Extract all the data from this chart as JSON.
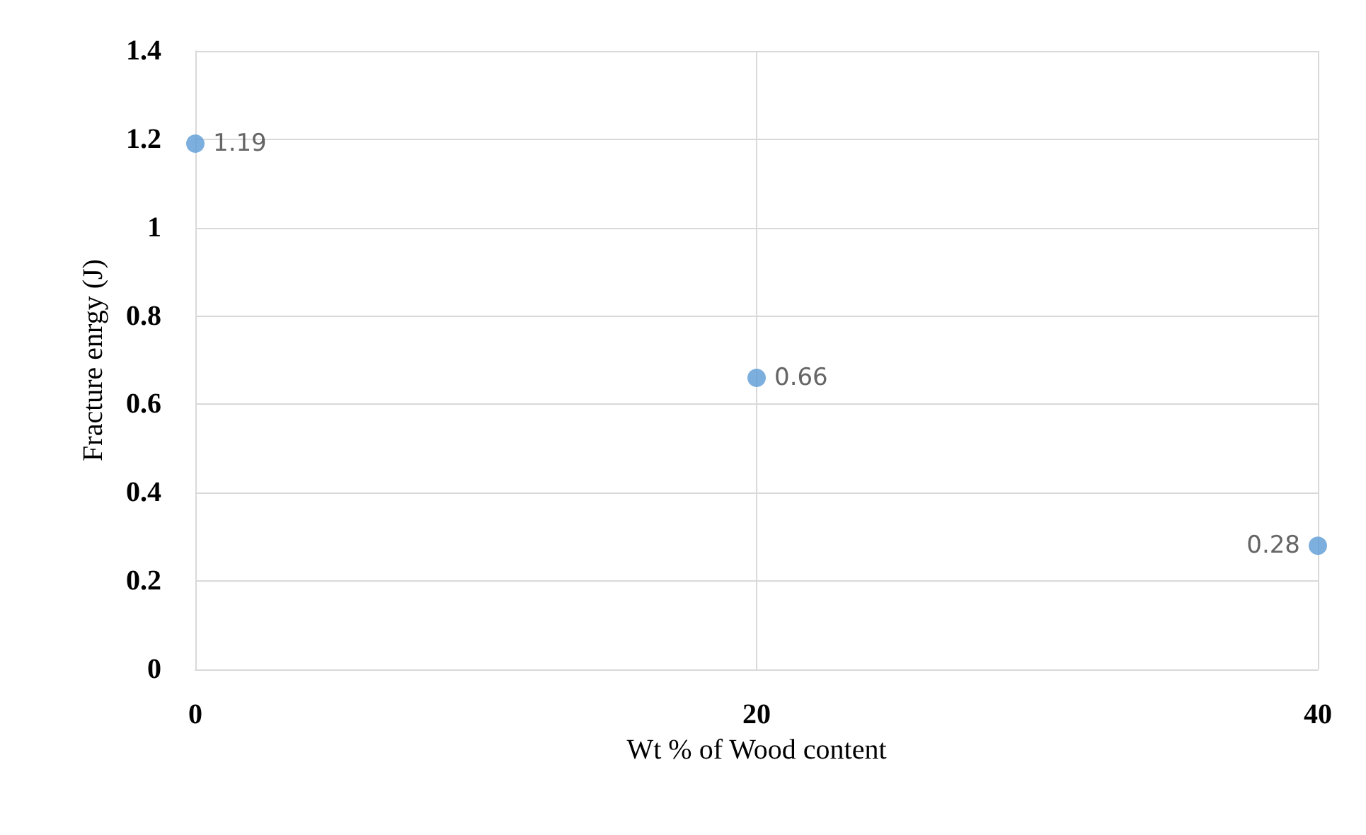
{
  "chart_data": {
    "type": "scatter",
    "xlabel": "Wt % of Wood content",
    "ylabel": "Fracture enrgy (J)",
    "x": [
      0,
      20,
      40
    ],
    "series": [
      {
        "color": "#5b9bd5",
        "values": [
          1.19,
          0.66,
          0.28
        ]
      }
    ],
    "xlim": [
      0,
      40
    ],
    "xticks": [
      0,
      20,
      40
    ],
    "ylim": [
      0,
      1.4
    ],
    "yticks": [
      0,
      0.2,
      0.4,
      0.6,
      0.8,
      1,
      1.2,
      1.4
    ],
    "grid": true,
    "marker": "circle",
    "data_labels": true
  }
}
